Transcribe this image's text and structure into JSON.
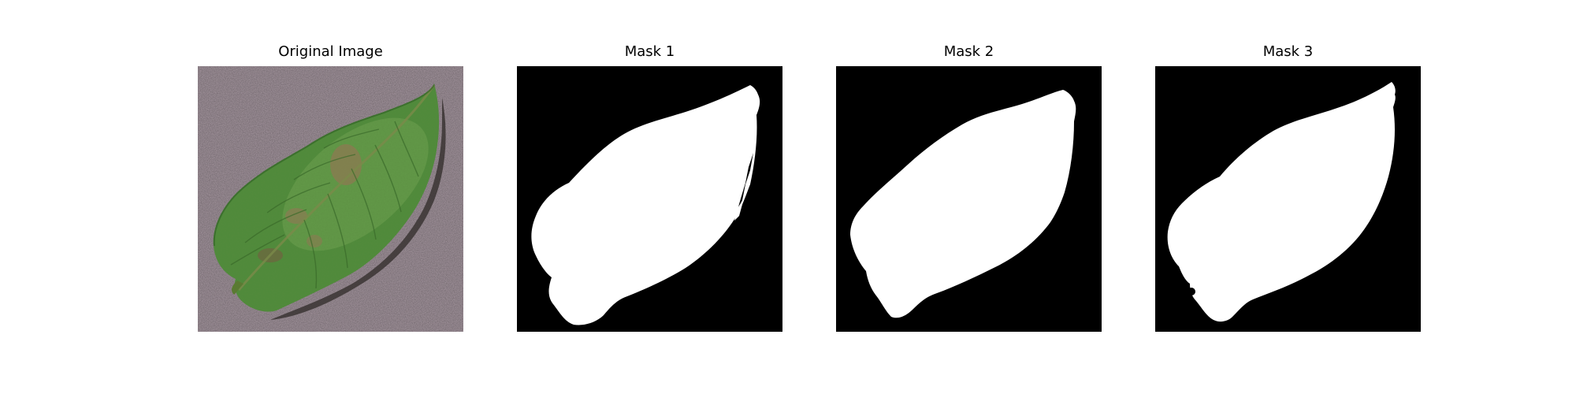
{
  "panels": [
    {
      "title": "Original Image"
    },
    {
      "title": "Mask 1"
    },
    {
      "title": "Mask 2"
    },
    {
      "title": "Mask 3"
    }
  ],
  "colors": {
    "background": "#ffffff",
    "mask_background": "#000000",
    "mask_foreground": "#ffffff",
    "surface": "#a99aa3",
    "leaf": "#4e8a3a",
    "leaf_light": "#72a653",
    "leaf_dark": "#2f5f24",
    "lesion": "#8c7a52",
    "shadow": "#3a3432"
  }
}
